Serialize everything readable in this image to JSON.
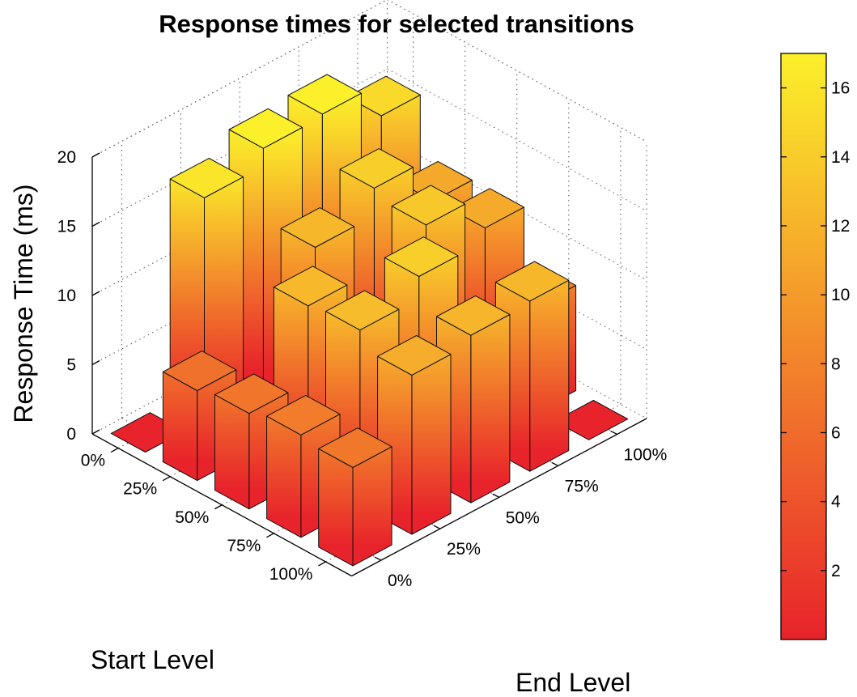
{
  "chart_data": {
    "type": "bar3d",
    "title": "Response times for selected transitions",
    "xlabel": "Start Level",
    "ylabel": "End Level",
    "zlabel": "Response Time (ms)",
    "start_levels": [
      "0%",
      "25%",
      "50%",
      "75%",
      "100%"
    ],
    "end_levels": [
      "0%",
      "25%",
      "50%",
      "75%",
      "100%"
    ],
    "zlim": [
      0,
      20
    ],
    "z_ticks": [
      0,
      5,
      10,
      15,
      20
    ],
    "values": [
      [
        0,
        16.1,
        17.4,
        17.6,
        15.2
      ],
      [
        6.5,
        0,
        12.3,
        14.3,
        11.1
      ],
      [
        6.9,
        12.4,
        0,
        13.7,
        11.2
      ],
      [
        7.4,
        12.7,
        14.3,
        0,
        7.6
      ],
      [
        7.1,
        11.5,
        12.1,
        12.3,
        0
      ]
    ],
    "colorbar": {
      "min": 0,
      "max": 17,
      "ticks": [
        2,
        4,
        6,
        8,
        10,
        12,
        14,
        16
      ],
      "colors": [
        "#e8232b",
        "#f3892b",
        "#fbf02a"
      ]
    },
    "grid": true,
    "view": "3d"
  }
}
